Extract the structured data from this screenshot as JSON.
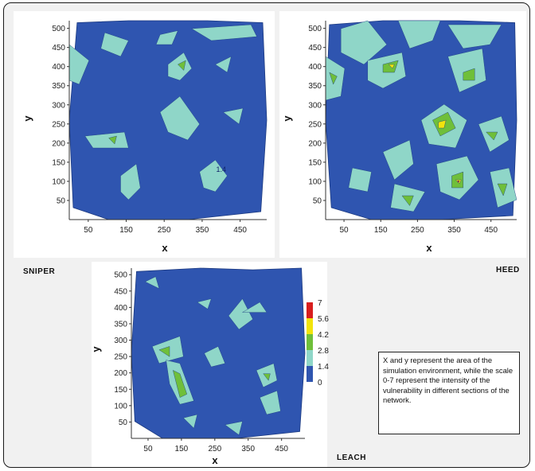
{
  "chart_data": [
    {
      "type": "contour",
      "caption": "SNIPER",
      "xlabel": "x",
      "ylabel": "y",
      "xticks": [
        50,
        150,
        250,
        350,
        450
      ],
      "yticks": [
        50,
        100,
        150,
        200,
        250,
        300,
        350,
        400,
        450,
        500
      ],
      "xlim": [
        0,
        520
      ],
      "ylim": [
        0,
        520
      ],
      "annotations": [
        {
          "text": "1.4",
          "x": 400,
          "y": 125
        }
      ]
    },
    {
      "type": "contour",
      "caption": "HEED",
      "xlabel": "x",
      "ylabel": "y",
      "xticks": [
        50,
        150,
        250,
        350,
        450
      ],
      "yticks": [
        50,
        100,
        150,
        200,
        250,
        300,
        350,
        400,
        450,
        500
      ],
      "xlim": [
        0,
        520
      ],
      "ylim": [
        0,
        520
      ]
    },
    {
      "type": "contour",
      "caption": "LEACH",
      "xlabel": "x",
      "ylabel": "y",
      "xticks": [
        50,
        150,
        250,
        350,
        450
      ],
      "yticks": [
        50,
        100,
        150,
        200,
        250,
        300,
        350,
        400,
        450,
        500
      ],
      "xlim": [
        0,
        520
      ],
      "ylim": [
        0,
        520
      ],
      "colorbar": {
        "ticks": [
          "7",
          "5.6",
          "4.2",
          "2.8",
          "1.4",
          "0"
        ],
        "colors": [
          "#d81e1e",
          "#f2e40c",
          "#6fbf3a",
          "#8fd6c8",
          "#2f55b0"
        ]
      }
    }
  ],
  "colors": {
    "level_0": "#2f55b0",
    "level_1": "#8fd6c8",
    "level_2": "#6fbf3a",
    "level_3": "#f2e40c",
    "level_4": "#d81e1e"
  },
  "note": "X and y represent the area of the simulation environment, while the scale 0-7 represent the intensity of the vulnerability in different sections of the network."
}
